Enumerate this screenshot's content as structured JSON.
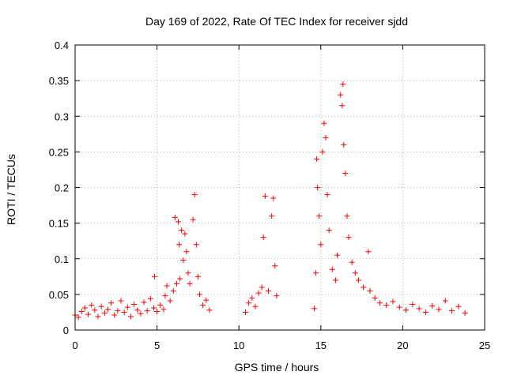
{
  "chart_data": {
    "type": "scatter",
    "title": "Day 169 of 2022, Rate Of TEC Index for receiver sjdd",
    "xlabel": "GPS time / hours",
    "ylabel": "ROTI / TECUs",
    "xlim": [
      0,
      25
    ],
    "ylim": [
      0,
      0.4
    ],
    "xticks": [
      0,
      5,
      10,
      15,
      20,
      25
    ],
    "xtick_labels": [
      "0",
      "5",
      "10",
      "15",
      "20",
      "25"
    ],
    "yticks": [
      0,
      0.05,
      0.1,
      0.15,
      0.2,
      0.25,
      0.3,
      0.35,
      0.4
    ],
    "ytick_labels": [
      "0",
      "0.05",
      "0.1",
      "0.15",
      "0.2",
      "0.25",
      "0.3",
      "0.35",
      "0.4"
    ],
    "grid": true,
    "marker": "+",
    "marker_color": "#ff0000",
    "data_gaps_hours": [
      [
        8.3,
        10.2
      ],
      [
        12.4,
        14.5
      ]
    ],
    "series": [
      {
        "name": "ROTI",
        "points": [
          [
            0.0,
            0.021
          ],
          [
            0.2,
            0.018
          ],
          [
            0.4,
            0.026
          ],
          [
            0.6,
            0.031
          ],
          [
            0.8,
            0.022
          ],
          [
            1.0,
            0.035
          ],
          [
            1.2,
            0.028
          ],
          [
            1.4,
            0.019
          ],
          [
            1.6,
            0.033
          ],
          [
            1.8,
            0.024
          ],
          [
            2.0,
            0.029
          ],
          [
            2.2,
            0.038
          ],
          [
            2.4,
            0.021
          ],
          [
            2.6,
            0.027
          ],
          [
            2.8,
            0.041
          ],
          [
            3.0,
            0.025
          ],
          [
            3.2,
            0.032
          ],
          [
            3.4,
            0.019
          ],
          [
            3.6,
            0.036
          ],
          [
            3.8,
            0.028
          ],
          [
            4.0,
            0.023
          ],
          [
            4.2,
            0.039
          ],
          [
            4.4,
            0.027
          ],
          [
            4.6,
            0.044
          ],
          [
            4.8,
            0.031
          ],
          [
            4.85,
            0.075
          ],
          [
            5.0,
            0.026
          ],
          [
            5.2,
            0.035
          ],
          [
            5.4,
            0.029
          ],
          [
            5.5,
            0.048
          ],
          [
            5.6,
            0.062
          ],
          [
            5.8,
            0.041
          ],
          [
            6.0,
            0.055
          ],
          [
            6.1,
            0.158
          ],
          [
            6.2,
            0.065
          ],
          [
            6.3,
            0.152
          ],
          [
            6.35,
            0.12
          ],
          [
            6.4,
            0.072
          ],
          [
            6.5,
            0.14
          ],
          [
            6.6,
            0.098
          ],
          [
            6.7,
            0.135
          ],
          [
            6.8,
            0.11
          ],
          [
            6.9,
            0.08
          ],
          [
            7.0,
            0.065
          ],
          [
            7.2,
            0.155
          ],
          [
            7.3,
            0.19
          ],
          [
            7.4,
            0.12
          ],
          [
            7.5,
            0.075
          ],
          [
            7.6,
            0.05
          ],
          [
            7.8,
            0.035
          ],
          [
            8.0,
            0.042
          ],
          [
            8.2,
            0.028
          ],
          [
            10.4,
            0.025
          ],
          [
            10.6,
            0.038
          ],
          [
            10.8,
            0.045
          ],
          [
            11.0,
            0.033
          ],
          [
            11.2,
            0.052
          ],
          [
            11.4,
            0.06
          ],
          [
            11.5,
            0.13
          ],
          [
            11.6,
            0.188
          ],
          [
            11.8,
            0.055
          ],
          [
            12.0,
            0.16
          ],
          [
            12.1,
            0.185
          ],
          [
            12.2,
            0.09
          ],
          [
            12.3,
            0.048
          ],
          [
            14.6,
            0.03
          ],
          [
            14.7,
            0.08
          ],
          [
            14.75,
            0.24
          ],
          [
            14.8,
            0.2
          ],
          [
            14.9,
            0.16
          ],
          [
            15.0,
            0.12
          ],
          [
            15.1,
            0.25
          ],
          [
            15.2,
            0.29
          ],
          [
            15.3,
            0.27
          ],
          [
            15.4,
            0.19
          ],
          [
            15.5,
            0.14
          ],
          [
            15.7,
            0.085
          ],
          [
            15.9,
            0.07
          ],
          [
            16.0,
            0.105
          ],
          [
            16.2,
            0.33
          ],
          [
            16.3,
            0.315
          ],
          [
            16.35,
            0.345
          ],
          [
            16.4,
            0.26
          ],
          [
            16.5,
            0.22
          ],
          [
            16.6,
            0.16
          ],
          [
            16.7,
            0.13
          ],
          [
            16.9,
            0.095
          ],
          [
            17.1,
            0.08
          ],
          [
            17.3,
            0.07
          ],
          [
            17.6,
            0.06
          ],
          [
            17.9,
            0.11
          ],
          [
            18.0,
            0.055
          ],
          [
            18.3,
            0.045
          ],
          [
            18.6,
            0.038
          ],
          [
            19.0,
            0.035
          ],
          [
            19.4,
            0.04
          ],
          [
            19.8,
            0.032
          ],
          [
            20.2,
            0.028
          ],
          [
            20.6,
            0.036
          ],
          [
            21.0,
            0.03
          ],
          [
            21.4,
            0.025
          ],
          [
            21.8,
            0.034
          ],
          [
            22.2,
            0.029
          ],
          [
            22.6,
            0.041
          ],
          [
            23.0,
            0.027
          ],
          [
            23.4,
            0.033
          ],
          [
            23.8,
            0.024
          ]
        ]
      }
    ]
  }
}
